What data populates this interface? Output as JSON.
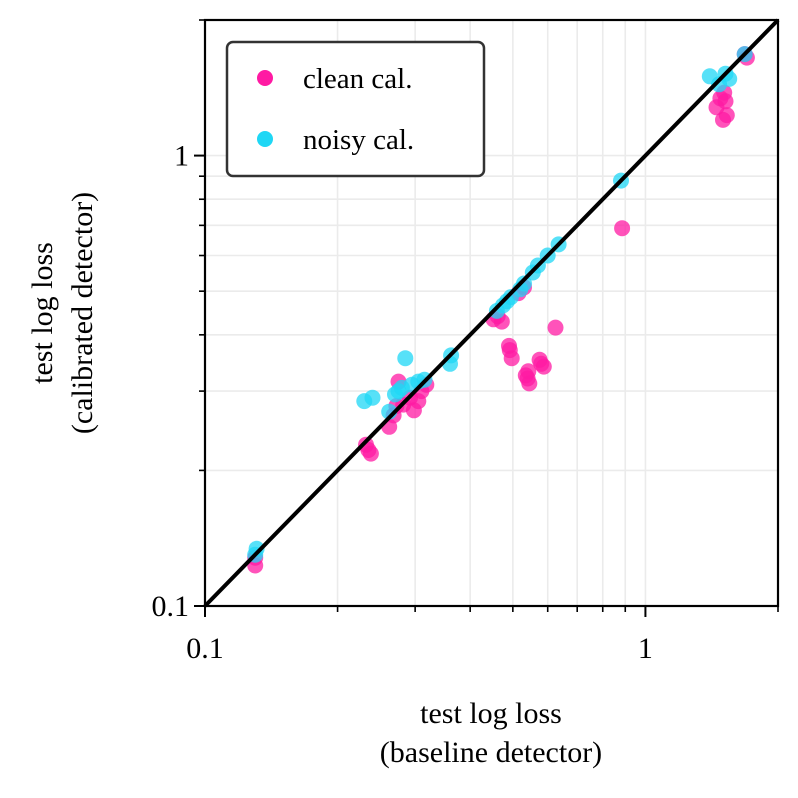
{
  "chart_data": {
    "type": "scatter",
    "scale": "log-log",
    "xlabel_lines": [
      "test log loss",
      "(baseline detector)"
    ],
    "ylabel_lines": [
      "test log loss",
      "(calibrated detector)"
    ],
    "xlim": [
      0.1,
      2.0
    ],
    "ylim": [
      0.1,
      2.0
    ],
    "x_tick_labels": [
      {
        "value": 0.1,
        "label": "0.1"
      },
      {
        "value": 1,
        "label": "1"
      }
    ],
    "y_tick_labels": [
      {
        "value": 0.1,
        "label": "0.1"
      },
      {
        "value": 1,
        "label": "1"
      }
    ],
    "grid": true,
    "legend_position": "top-left",
    "reference_line": "y = x",
    "colors": {
      "clean": "#ff1aa3",
      "noisy": "#1fd7f5",
      "line": "#000000"
    },
    "series": [
      {
        "name": "clean cal.",
        "key": "clean",
        "points": [
          [
            0.13,
            0.123
          ],
          [
            0.13,
            0.128
          ],
          [
            0.232,
            0.228
          ],
          [
            0.235,
            0.222
          ],
          [
            0.238,
            0.218
          ],
          [
            0.262,
            0.25
          ],
          [
            0.268,
            0.265
          ],
          [
            0.272,
            0.278
          ],
          [
            0.275,
            0.315
          ],
          [
            0.282,
            0.28
          ],
          [
            0.292,
            0.29
          ],
          [
            0.298,
            0.272
          ],
          [
            0.305,
            0.285
          ],
          [
            0.31,
            0.3
          ],
          [
            0.318,
            0.31
          ],
          [
            0.452,
            0.433
          ],
          [
            0.462,
            0.44
          ],
          [
            0.472,
            0.428
          ],
          [
            0.49,
            0.378
          ],
          [
            0.492,
            0.37
          ],
          [
            0.497,
            0.355
          ],
          [
            0.535,
            0.325
          ],
          [
            0.54,
            0.32
          ],
          [
            0.545,
            0.312
          ],
          [
            0.542,
            0.332
          ],
          [
            0.575,
            0.352
          ],
          [
            0.58,
            0.345
          ],
          [
            0.588,
            0.34
          ],
          [
            0.53,
            0.51
          ],
          [
            0.515,
            0.495
          ],
          [
            0.625,
            0.415
          ],
          [
            0.885,
            0.69
          ],
          [
            1.45,
            1.28
          ],
          [
            1.48,
            1.34
          ],
          [
            1.52,
            1.32
          ],
          [
            1.53,
            1.23
          ],
          [
            1.5,
            1.2
          ],
          [
            1.51,
            1.38
          ],
          [
            1.7,
            1.65
          ],
          [
            1.68,
            1.68
          ]
        ]
      },
      {
        "name": "noisy cal.",
        "key": "noisy",
        "points": [
          [
            0.13,
            0.13
          ],
          [
            0.131,
            0.134
          ],
          [
            0.23,
            0.285
          ],
          [
            0.24,
            0.29
          ],
          [
            0.262,
            0.27
          ],
          [
            0.27,
            0.295
          ],
          [
            0.275,
            0.3
          ],
          [
            0.28,
            0.305
          ],
          [
            0.285,
            0.355
          ],
          [
            0.295,
            0.31
          ],
          [
            0.305,
            0.315
          ],
          [
            0.315,
            0.318
          ],
          [
            0.36,
            0.345
          ],
          [
            0.362,
            0.36
          ],
          [
            0.46,
            0.452
          ],
          [
            0.475,
            0.465
          ],
          [
            0.485,
            0.475
          ],
          [
            0.495,
            0.485
          ],
          [
            0.52,
            0.505
          ],
          [
            0.53,
            0.52
          ],
          [
            0.555,
            0.55
          ],
          [
            0.57,
            0.57
          ],
          [
            0.6,
            0.6
          ],
          [
            0.635,
            0.635
          ],
          [
            0.88,
            0.88
          ],
          [
            1.4,
            1.5
          ],
          [
            1.47,
            1.44
          ],
          [
            1.52,
            1.52
          ],
          [
            1.55,
            1.48
          ],
          [
            1.68,
            1.68
          ]
        ]
      }
    ]
  }
}
